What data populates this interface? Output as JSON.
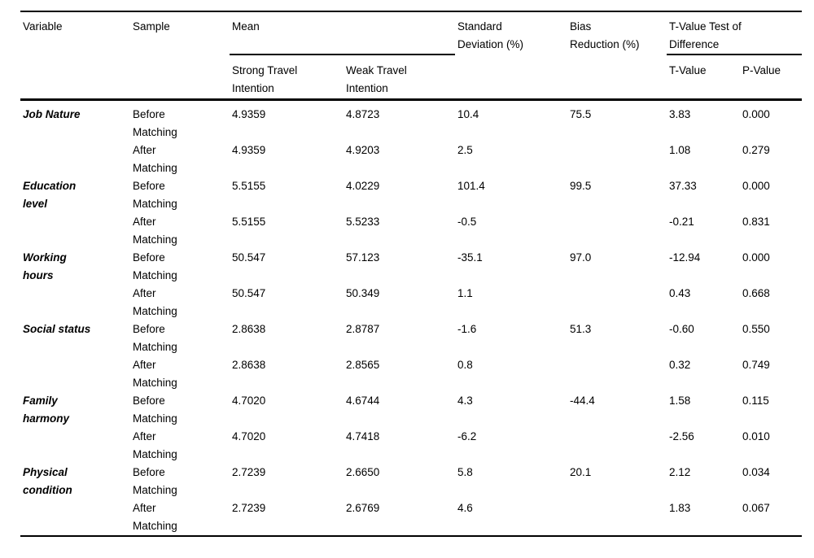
{
  "table": {
    "headers": {
      "variable": "Variable",
      "sample": "Sample",
      "mean": "Mean",
      "mean_sub_strong": "Strong Travel\nIntention",
      "mean_sub_weak": "Weak Travel\nIntention",
      "standard_deviation": "Standard\nDeviation (%)",
      "bias_reduction": "Bias\nReduction (%)",
      "t_value_test": "T-Value Test of\nDifference",
      "t_value": "T-Value",
      "p_value": "P-Value"
    },
    "groups": [
      {
        "variable": "Job Nature",
        "rows": [
          {
            "sample": "Before\nMatching",
            "strong": "4.9359",
            "weak": "4.8723",
            "sd": "10.4",
            "bias": "75.5",
            "t": "3.83",
            "p": "0.000"
          },
          {
            "sample": "After\nMatching",
            "strong": "4.9359",
            "weak": "4.9203",
            "sd": "2.5",
            "bias": "",
            "t": "1.08",
            "p": "0.279"
          }
        ]
      },
      {
        "variable": "Education\nlevel",
        "rows": [
          {
            "sample": "Before\nMatching",
            "strong": "5.5155",
            "weak": "4.0229",
            "sd": "101.4",
            "bias": "99.5",
            "t": "37.33",
            "p": "0.000"
          },
          {
            "sample": "After\nMatching",
            "strong": "5.5155",
            "weak": "5.5233",
            "sd": "-0.5",
            "bias": "",
            "t": "-0.21",
            "p": "0.831"
          }
        ]
      },
      {
        "variable": "Working\nhours",
        "rows": [
          {
            "sample": "Before\nMatching",
            "strong": "50.547",
            "weak": "57.123",
            "sd": "-35.1",
            "bias": "97.0",
            "t": "-12.94",
            "p": "0.000"
          },
          {
            "sample": "After\nMatching",
            "strong": "50.547",
            "weak": "50.349",
            "sd": "1.1",
            "bias": "",
            "t": "0.43",
            "p": "0.668"
          }
        ]
      },
      {
        "variable": "Social status",
        "rows": [
          {
            "sample": "Before\nMatching",
            "strong": "2.8638",
            "weak": "2.8787",
            "sd": "-1.6",
            "bias": "51.3",
            "t": "-0.60",
            "p": "0.550"
          },
          {
            "sample": "After\nMatching",
            "strong": "2.8638",
            "weak": "2.8565",
            "sd": "0.8",
            "bias": "",
            "t": "0.32",
            "p": "0.749"
          }
        ]
      },
      {
        "variable": "Family\nharmony",
        "rows": [
          {
            "sample": "Before\nMatching",
            "strong": "4.7020",
            "weak": "4.6744",
            "sd": "4.3",
            "bias": "-44.4",
            "t": "1.58",
            "p": "0.115"
          },
          {
            "sample": "After\nMatching",
            "strong": "4.7020",
            "weak": "4.7418",
            "sd": "-6.2",
            "bias": "",
            "t": "-2.56",
            "p": "0.010"
          }
        ]
      },
      {
        "variable": "Physical\ncondition",
        "rows": [
          {
            "sample": "Before\nMatching",
            "strong": "2.7239",
            "weak": "2.6650",
            "sd": "5.8",
            "bias": "20.1",
            "t": "2.12",
            "p": "0.034"
          },
          {
            "sample": "After\nMatching",
            "strong": "2.7239",
            "weak": "2.6769",
            "sd": "4.6",
            "bias": "",
            "t": "1.83",
            "p": "0.067"
          }
        ]
      }
    ]
  }
}
